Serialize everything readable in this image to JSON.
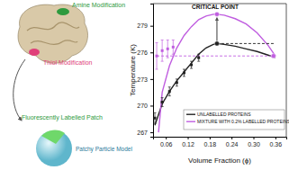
{
  "chart_data": {
    "type": "line",
    "x_label": "Volume Fraction (ϕ)",
    "y_label": "Temperature (K)",
    "xlim": [
      0.025,
      0.39
    ],
    "ylim": [
      266.5,
      281.5
    ],
    "xticks": [
      0.06,
      0.12,
      0.18,
      0.24,
      {
        "value": 0.3,
        "label": "0.30"
      },
      0.36
    ],
    "yticks": [
      267,
      270,
      273,
      276,
      279
    ],
    "legend": "lower right",
    "annotations": [
      "CRITICAL POINT"
    ],
    "series": [
      {
        "name": "UNLABELLED PROTEINS",
        "type": "line",
        "color": "#222222",
        "line_style": "solid",
        "x": [
          0.03,
          0.05,
          0.07,
          0.09,
          0.11,
          0.13,
          0.15,
          0.17,
          0.19,
          0.2,
          0.22,
          0.25,
          0.28,
          0.31,
          0.34,
          0.36
        ],
        "values": [
          267.8,
          270.2,
          271.6,
          272.8,
          273.8,
          274.8,
          275.8,
          276.5,
          276.9,
          277.0,
          276.9,
          276.7,
          276.4,
          276.1,
          275.7,
          275.4
        ]
      },
      {
        "name": "MIXTURE WITH 0.2% LABELLED PROTEINS",
        "type": "line",
        "color": "#c05ee0",
        "line_style": "solid",
        "x": [
          0.04,
          0.05,
          0.07,
          0.09,
          0.11,
          0.13,
          0.15,
          0.17,
          0.19,
          0.2,
          0.22,
          0.25,
          0.28,
          0.31,
          0.34,
          0.36
        ],
        "values": [
          267.0,
          271.5,
          274.5,
          276.5,
          277.9,
          278.9,
          279.7,
          280.1,
          280.3,
          280.3,
          280.2,
          279.8,
          279.2,
          278.2,
          276.8,
          275.6
        ]
      },
      {
        "type": "line",
        "color": "#c05ee0",
        "line_style": "dashed",
        "x": [
          0.035,
          0.355
        ],
        "values": [
          275.6,
          275.6
        ]
      },
      {
        "type": "line",
        "color": "#222222",
        "line_style": "dashed",
        "x": [
          0.2,
          0.36
        ],
        "values": [
          277.0,
          277.0
        ]
      },
      {
        "type": "scatter",
        "color": "#222222",
        "marker": "square",
        "x": [
          0.03,
          0.05,
          0.07,
          0.09,
          0.11,
          0.13,
          0.15
        ],
        "values": [
          268.6,
          270.4,
          271.6,
          272.6,
          273.7,
          274.6,
          275.4
        ],
        "errors": [
          0.6,
          0.5,
          0.5,
          0.4,
          0.4,
          0.4,
          0.4
        ]
      },
      {
        "type": "scatter",
        "color": "#c05ee0",
        "marker": "square",
        "x": [
          0.035,
          0.05,
          0.065,
          0.08
        ],
        "values": [
          275.6,
          276.2,
          276.4,
          276.6
        ],
        "errors": [
          1.5,
          1.2,
          1.0,
          0.8
        ]
      },
      {
        "type": "scatter",
        "color": "#222222",
        "marker": "circle",
        "x": [
          0.2
        ],
        "values": [
          277.0
        ]
      },
      {
        "type": "scatter",
        "color": "#c05ee0",
        "marker": "circle",
        "x": [
          0.2,
          0.355
        ],
        "values": [
          280.3,
          275.6
        ]
      }
    ]
  },
  "diagram": {
    "labels": [
      "Amine Modification",
      "Thiol Modification",
      "Fluorescently Labelled Patch",
      "Patchy Particle Model"
    ]
  }
}
